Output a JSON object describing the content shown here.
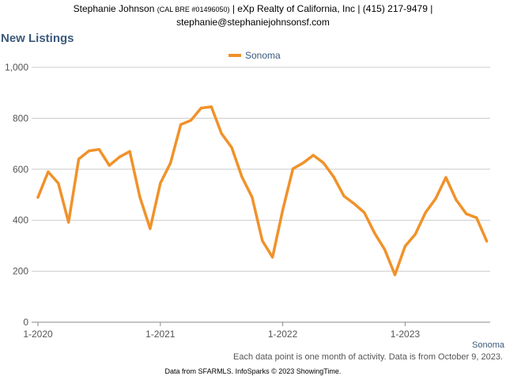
{
  "header": {
    "name": "Stephanie Johnson",
    "license": "(CAL BRE #01496050)",
    "rest": "| eXp Realty of California, Inc | (415) 217-9479 |",
    "email": "stephanie@stephaniejohnsonsf.com"
  },
  "page_title": "New Listings",
  "footnote": "Each data point is one month of activity. Data is from October 9, 2023.",
  "source": "Data from SFARMLS. InfoSparks © 2023 ShowingTime.",
  "colors": {
    "series": "#f0922a",
    "grid": "#cccccc",
    "title": "#3c5a7c"
  },
  "chart_data": {
    "type": "line",
    "title": "",
    "xlabel": "",
    "ylabel": "",
    "ylim": [
      0,
      1000
    ],
    "yticks": [
      0,
      200,
      400,
      600,
      800,
      1000
    ],
    "ytick_labels": [
      "0",
      "200",
      "400",
      "600",
      "800",
      "1,000"
    ],
    "xtick_labels": [
      "1-2020",
      "1-2021",
      "1-2022",
      "1-2023"
    ],
    "xtick_months": [
      "2020-01",
      "2021-01",
      "2022-01",
      "2023-01"
    ],
    "grid": true,
    "legend_position": "top-center",
    "x": [
      "2020-01",
      "2020-02",
      "2020-03",
      "2020-04",
      "2020-05",
      "2020-06",
      "2020-07",
      "2020-08",
      "2020-09",
      "2020-10",
      "2020-11",
      "2020-12",
      "2021-01",
      "2021-02",
      "2021-03",
      "2021-04",
      "2021-05",
      "2021-06",
      "2021-07",
      "2021-08",
      "2021-09",
      "2021-10",
      "2021-11",
      "2021-12",
      "2022-01",
      "2022-02",
      "2022-03",
      "2022-04",
      "2022-05",
      "2022-06",
      "2022-07",
      "2022-08",
      "2022-09",
      "2022-10",
      "2022-11",
      "2022-12",
      "2023-01",
      "2023-02",
      "2023-03",
      "2023-04",
      "2023-05",
      "2023-06",
      "2023-07",
      "2023-08",
      "2023-09"
    ],
    "series": [
      {
        "name": "Sonoma",
        "values": [
          490,
          590,
          545,
          392,
          640,
          672,
          678,
          615,
          648,
          670,
          490,
          367,
          545,
          625,
          775,
          792,
          840,
          845,
          740,
          685,
          570,
          490,
          320,
          255,
          440,
          602,
          625,
          655,
          625,
          570,
          495,
          465,
          430,
          350,
          285,
          186,
          298,
          345,
          430,
          485,
          568,
          480,
          425,
          410,
          318
        ]
      }
    ]
  }
}
